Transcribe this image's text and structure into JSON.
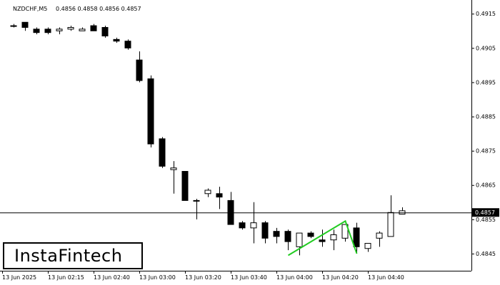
{
  "header": {
    "symbol": "NZDCHF,M5",
    "ohlc": "0.4856 0.4858 0.4856 0.4857"
  },
  "logo": {
    "text": "InstaFintech"
  },
  "chart_data": {
    "type": "candlestick",
    "symbol": "NZDCHF",
    "timeframe": "M5",
    "ylim": [
      0.484,
      0.4919
    ],
    "y_ticks": [
      "0.4915",
      "0.4905",
      "0.4895",
      "0.4885",
      "0.4875",
      "0.4865",
      "0.4855",
      "0.4845"
    ],
    "x_ticks": [
      "13 Jun 2025",
      "13 Jun 02:15",
      "13 Jun 02:40",
      "13 Jun 03:00",
      "13 Jun 03:20",
      "13 Jun 03:40",
      "13 Jun 04:00",
      "13 Jun 04:20",
      "13 Jun 04:40"
    ],
    "current_price": "0.4857",
    "colors": {
      "bull": "#ffffff",
      "bear": "#000000",
      "pattern": "#22cc22",
      "background": "#ffffff"
    },
    "candles": [
      {
        "o": 0.49115,
        "h": 0.4912,
        "l": 0.4911,
        "c": 0.49115
      },
      {
        "o": 0.49125,
        "h": 0.49125,
        "l": 0.491,
        "c": 0.4911
      },
      {
        "o": 0.49105,
        "h": 0.4911,
        "l": 0.4909,
        "c": 0.49095
      },
      {
        "o": 0.49105,
        "h": 0.4911,
        "l": 0.4909,
        "c": 0.49095
      },
      {
        "o": 0.491,
        "h": 0.4911,
        "l": 0.4909,
        "c": 0.49105
      },
      {
        "o": 0.49105,
        "h": 0.49115,
        "l": 0.491,
        "c": 0.4911
      },
      {
        "o": 0.491,
        "h": 0.4911,
        "l": 0.491,
        "c": 0.49105
      },
      {
        "o": 0.49115,
        "h": 0.4912,
        "l": 0.491,
        "c": 0.491
      },
      {
        "o": 0.4911,
        "h": 0.49115,
        "l": 0.4908,
        "c": 0.49085
      },
      {
        "o": 0.49075,
        "h": 0.4908,
        "l": 0.49065,
        "c": 0.4907
      },
      {
        "o": 0.4907,
        "h": 0.49075,
        "l": 0.49045,
        "c": 0.4905
      },
      {
        "o": 0.49015,
        "h": 0.4904,
        "l": 0.4895,
        "c": 0.48955
      },
      {
        "o": 0.4896,
        "h": 0.4897,
        "l": 0.4876,
        "c": 0.4877
      },
      {
        "o": 0.48785,
        "h": 0.4879,
        "l": 0.487,
        "c": 0.48705
      },
      {
        "o": 0.48695,
        "h": 0.4872,
        "l": 0.48625,
        "c": 0.487
      },
      {
        "o": 0.4869,
        "h": 0.4869,
        "l": 0.48605,
        "c": 0.48605
      },
      {
        "o": 0.48605,
        "h": 0.4861,
        "l": 0.4855,
        "c": 0.48605
      },
      {
        "o": 0.48625,
        "h": 0.4864,
        "l": 0.48615,
        "c": 0.48635
      },
      {
        "o": 0.48625,
        "h": 0.48645,
        "l": 0.4858,
        "c": 0.48615
      },
      {
        "o": 0.48605,
        "h": 0.4863,
        "l": 0.48535,
        "c": 0.48535
      },
      {
        "o": 0.4854,
        "h": 0.48545,
        "l": 0.4852,
        "c": 0.48525
      },
      {
        "o": 0.48525,
        "h": 0.486,
        "l": 0.4848,
        "c": 0.4854
      },
      {
        "o": 0.4854,
        "h": 0.48545,
        "l": 0.4848,
        "c": 0.48495
      },
      {
        "o": 0.48515,
        "h": 0.48525,
        "l": 0.4848,
        "c": 0.485
      },
      {
        "o": 0.48515,
        "h": 0.4852,
        "l": 0.4846,
        "c": 0.48485
      },
      {
        "o": 0.4847,
        "h": 0.4851,
        "l": 0.48445,
        "c": 0.4851
      },
      {
        "o": 0.4851,
        "h": 0.48515,
        "l": 0.48495,
        "c": 0.485
      },
      {
        "o": 0.4849,
        "h": 0.4852,
        "l": 0.4847,
        "c": 0.48485
      },
      {
        "o": 0.4849,
        "h": 0.4852,
        "l": 0.4846,
        "c": 0.48505
      },
      {
        "o": 0.48495,
        "h": 0.48535,
        "l": 0.48485,
        "c": 0.48535
      },
      {
        "o": 0.48525,
        "h": 0.4854,
        "l": 0.4845,
        "c": 0.4847
      },
      {
        "o": 0.48465,
        "h": 0.4848,
        "l": 0.48455,
        "c": 0.4848
      },
      {
        "o": 0.48495,
        "h": 0.48515,
        "l": 0.4847,
        "c": 0.4851
      },
      {
        "o": 0.485,
        "h": 0.4862,
        "l": 0.485,
        "c": 0.4857
      },
      {
        "o": 0.48565,
        "h": 0.48585,
        "l": 0.48565,
        "c": 0.48575
      }
    ],
    "pattern_line": [
      {
        "candle": 24,
        "price": 0.48445
      },
      {
        "candle": 29,
        "price": 0.48545
      },
      {
        "candle": 30,
        "price": 0.4845
      }
    ]
  }
}
